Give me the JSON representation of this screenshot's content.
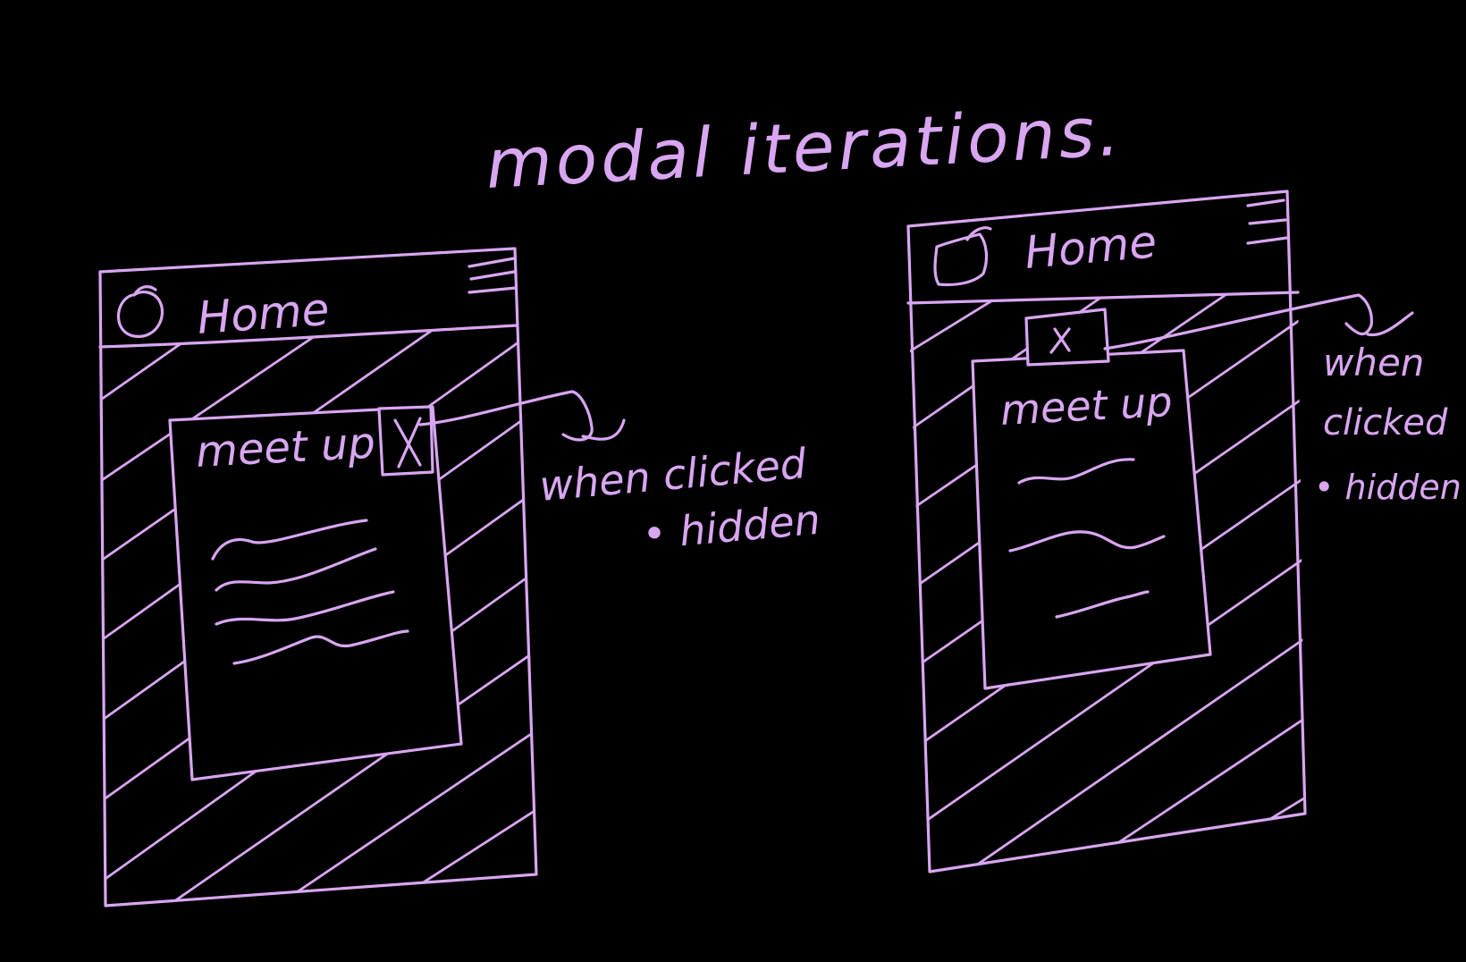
{
  "title": "modal iterations.",
  "stroke_color": "#d9a6f2",
  "background_color": "#000000",
  "frames": [
    {
      "header_title": "Home",
      "modal_title": "meet up",
      "close_glyph": "X",
      "annotation_line1": "when clicked",
      "annotation_line2": "• hidden"
    },
    {
      "header_title": "Home",
      "modal_title": "meet up",
      "close_glyph": "x",
      "annotation_line1": "when",
      "annotation_line2": "clicked",
      "annotation_line3": "• hidden"
    }
  ]
}
